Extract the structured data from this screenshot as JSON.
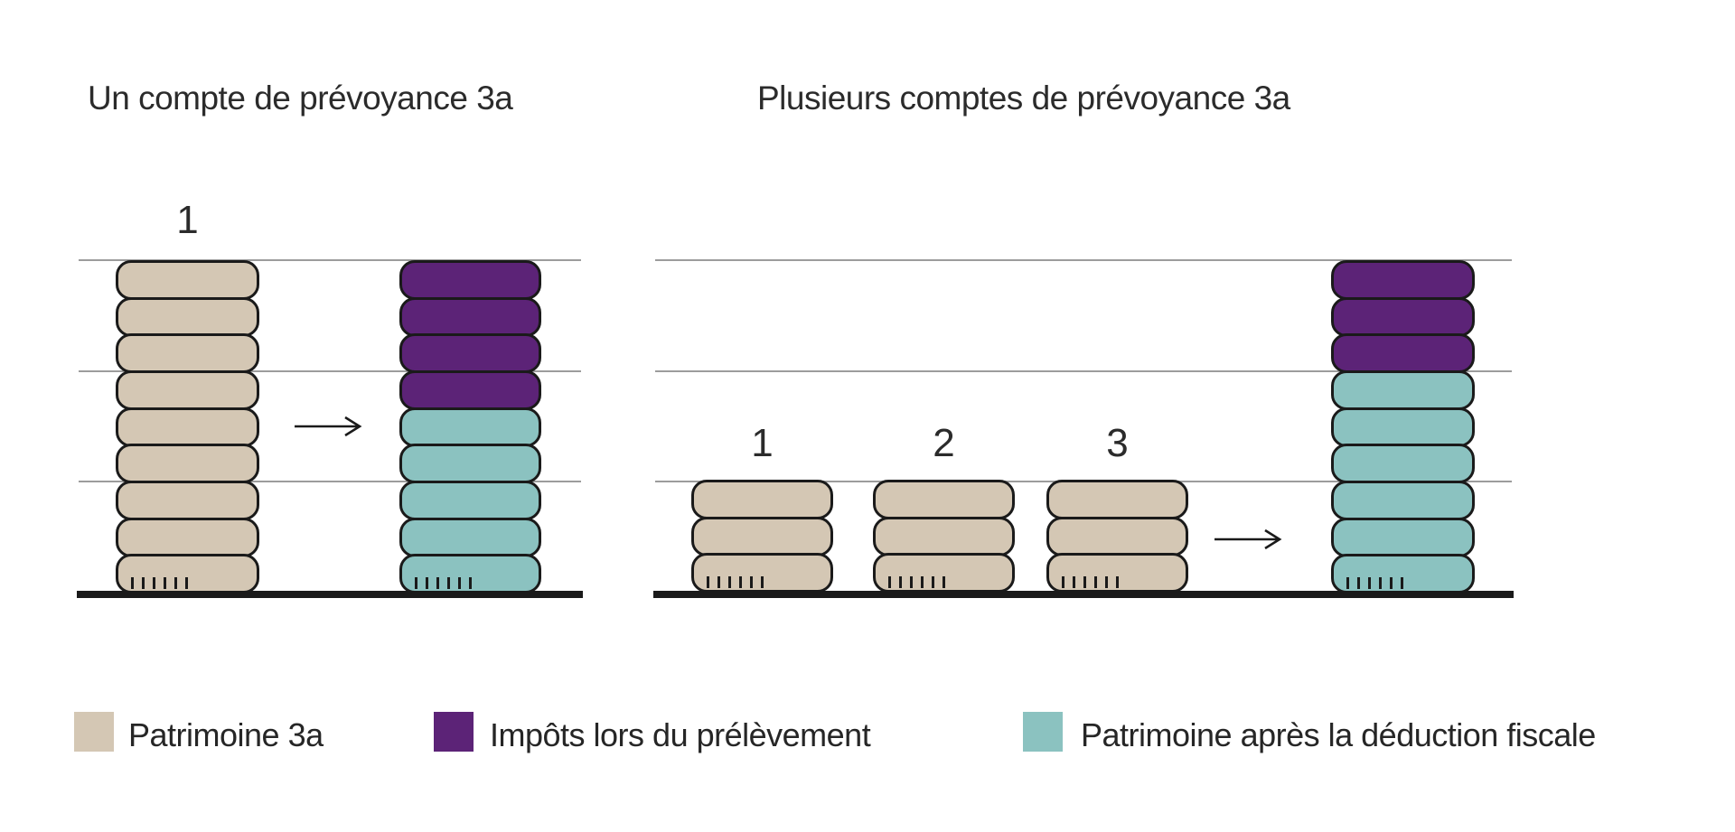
{
  "panel_left": {
    "title": "Un compte de prévoyance 3a",
    "stack_single": {
      "label": "1",
      "segments": [
        {
          "color": "patrimoine_3a",
          "count": 9
        }
      ]
    },
    "stack_result": {
      "segments": [
        {
          "color": "impots",
          "count": 4
        },
        {
          "color": "patrimoine_apres",
          "count": 5
        }
      ]
    }
  },
  "panel_right": {
    "title": "Plusieurs comptes de prévoyance 3a",
    "stack_1": {
      "label": "1",
      "segments": [
        {
          "color": "patrimoine_3a",
          "count": 3
        }
      ]
    },
    "stack_2": {
      "label": "2",
      "segments": [
        {
          "color": "patrimoine_3a",
          "count": 3
        }
      ]
    },
    "stack_3": {
      "label": "3",
      "segments": [
        {
          "color": "patrimoine_3a",
          "count": 3
        }
      ]
    },
    "stack_result": {
      "segments": [
        {
          "color": "impots",
          "count": 3
        },
        {
          "color": "patrimoine_apres",
          "count": 6
        }
      ]
    }
  },
  "legend": [
    {
      "label": "Patrimoine 3a",
      "color": "patrimoine_3a"
    },
    {
      "label": "Impôts lors du prélèvement",
      "color": "impots"
    },
    {
      "label": "Patrimoine après la déduction fiscale",
      "color": "patrimoine_apres"
    }
  ],
  "colors": {
    "patrimoine_3a": "#d4c7b4",
    "impots": "#5c2377",
    "patrimoine_apres": "#8bc2c0",
    "outline": "#1a1a1a",
    "gridline": "#9c9c9c",
    "baseline": "#1a1a1a",
    "text": "#262626"
  },
  "chart_data": {
    "type": "pictogram-stacked-bar",
    "unit": "coin (unité de patrimoine)",
    "gridline_levels_in_coins": [
      3,
      6,
      9
    ],
    "scenarios": [
      {
        "name": "Un compte de prévoyance 3a",
        "before": {
          "Patrimoine 3a": 9
        },
        "after": {
          "Impôts lors du prélèvement": 4,
          "Patrimoine après la déduction fiscale": 5
        }
      },
      {
        "name": "Plusieurs comptes de prévoyance 3a",
        "before": {
          "compte 1": 3,
          "compte 2": 3,
          "compte 3": 3
        },
        "after": {
          "Impôts lors du prélèvement": 3,
          "Patrimoine après la déduction fiscale": 6
        }
      }
    ]
  }
}
